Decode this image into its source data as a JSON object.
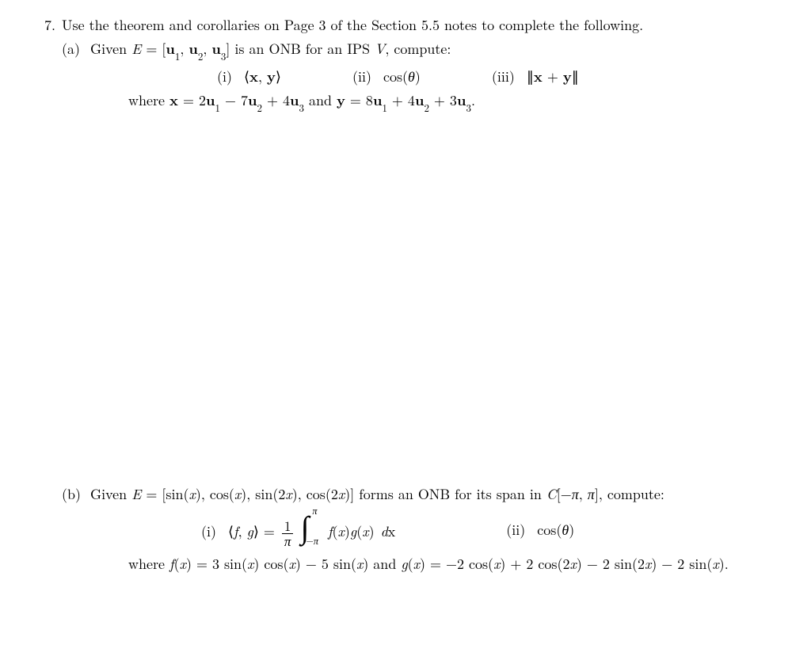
{
  "problem_number": "7.",
  "intro": "Use the theorem and corollaries on Page 3 of the Section 5.5 notes to complete the following.",
  "part_a": {
    "label": "(a)",
    "given_html": "Given <span class='mi'>E</span> = [<span class='mb'>u</span><sub>1</sub>, <span class='mb'>u</span><sub>2</sub>, <span class='mb'>u</span><sub>3</sub>] is an ONB for an IPS <span class='mi'>V</span>, compute:",
    "item_i": "(i)&nbsp; <span class='lang'></span><span class='mb'>x</span>, <span class='mb'>y</span><span class='rang'></span>",
    "item_ii": "(ii)&nbsp; cos(<span class='mi'>&theta;</span>)",
    "item_iii": "(iii)&nbsp; <span class='norm'><span class='mb'>x</span> + <span class='mb'>y</span></span>",
    "where_html": "where <span class='mb'>x</span> = 2<span class='mb'>u</span><sub>1</sub> &minus; 7<span class='mb'>u</span><sub>2</sub> + 4<span class='mb'>u</span><sub>3</sub> and <span class='mb'>y</span> = 8<span class='mb'>u</span><sub>1</sub> + 4<span class='mb'>u</span><sub>2</sub> + 3<span class='mb'>u</span><sub>3</sub>."
  },
  "part_b": {
    "label": "(b)",
    "given_html": "Given <span class='mi'>E</span> = [sin(<span class='mi'>x</span>), cos(<span class='mi'>x</span>), sin(2<span class='mi'>x</span>), cos(2<span class='mi'>x</span>)] forms an ONB for its span in <span class='mi'>C</span>[&minus;<span class='mi'>&pi;</span>, <span class='mi'>&pi;</span>], compute:",
    "item_i_pre": "(i)&nbsp; <span class='lang'></span><span class='mi'>f</span>, <span class='mi'>g</span><span class='rang'></span> = ",
    "frac_num": "1",
    "frac_den": "<span class='mi'>&pi;</span>",
    "int_upper": "<span class='mi'>&pi;</span>",
    "int_lower": "&minus;<span class='mi'>&pi;</span>",
    "integrand": "<span class='mi'>f</span>(<span class='mi'>x</span>)<span class='mi'>g</span>(<span class='mi'>x</span>)",
    "dx": " d<span class='mi rom'>x</span>",
    "item_ii": "(ii)&nbsp; cos(<span class='mi'>&theta;</span>)",
    "where_html": "where <span class='mi'>f</span>(<span class='mi'>x</span>) = 3 sin(<span class='mi'>x</span>) cos(<span class='mi'>x</span>) &minus; 5 sin(<span class='mi'>x</span>) and <span class='mi'>g</span>(<span class='mi'>x</span>) = &minus;2 cos(<span class='mi'>x</span>) + 2 cos(2<span class='mi'>x</span>) &minus; 2 sin(2<span class='mi'>x</span>) &minus; 2 sin(<span class='mi'>x</span>)."
  }
}
